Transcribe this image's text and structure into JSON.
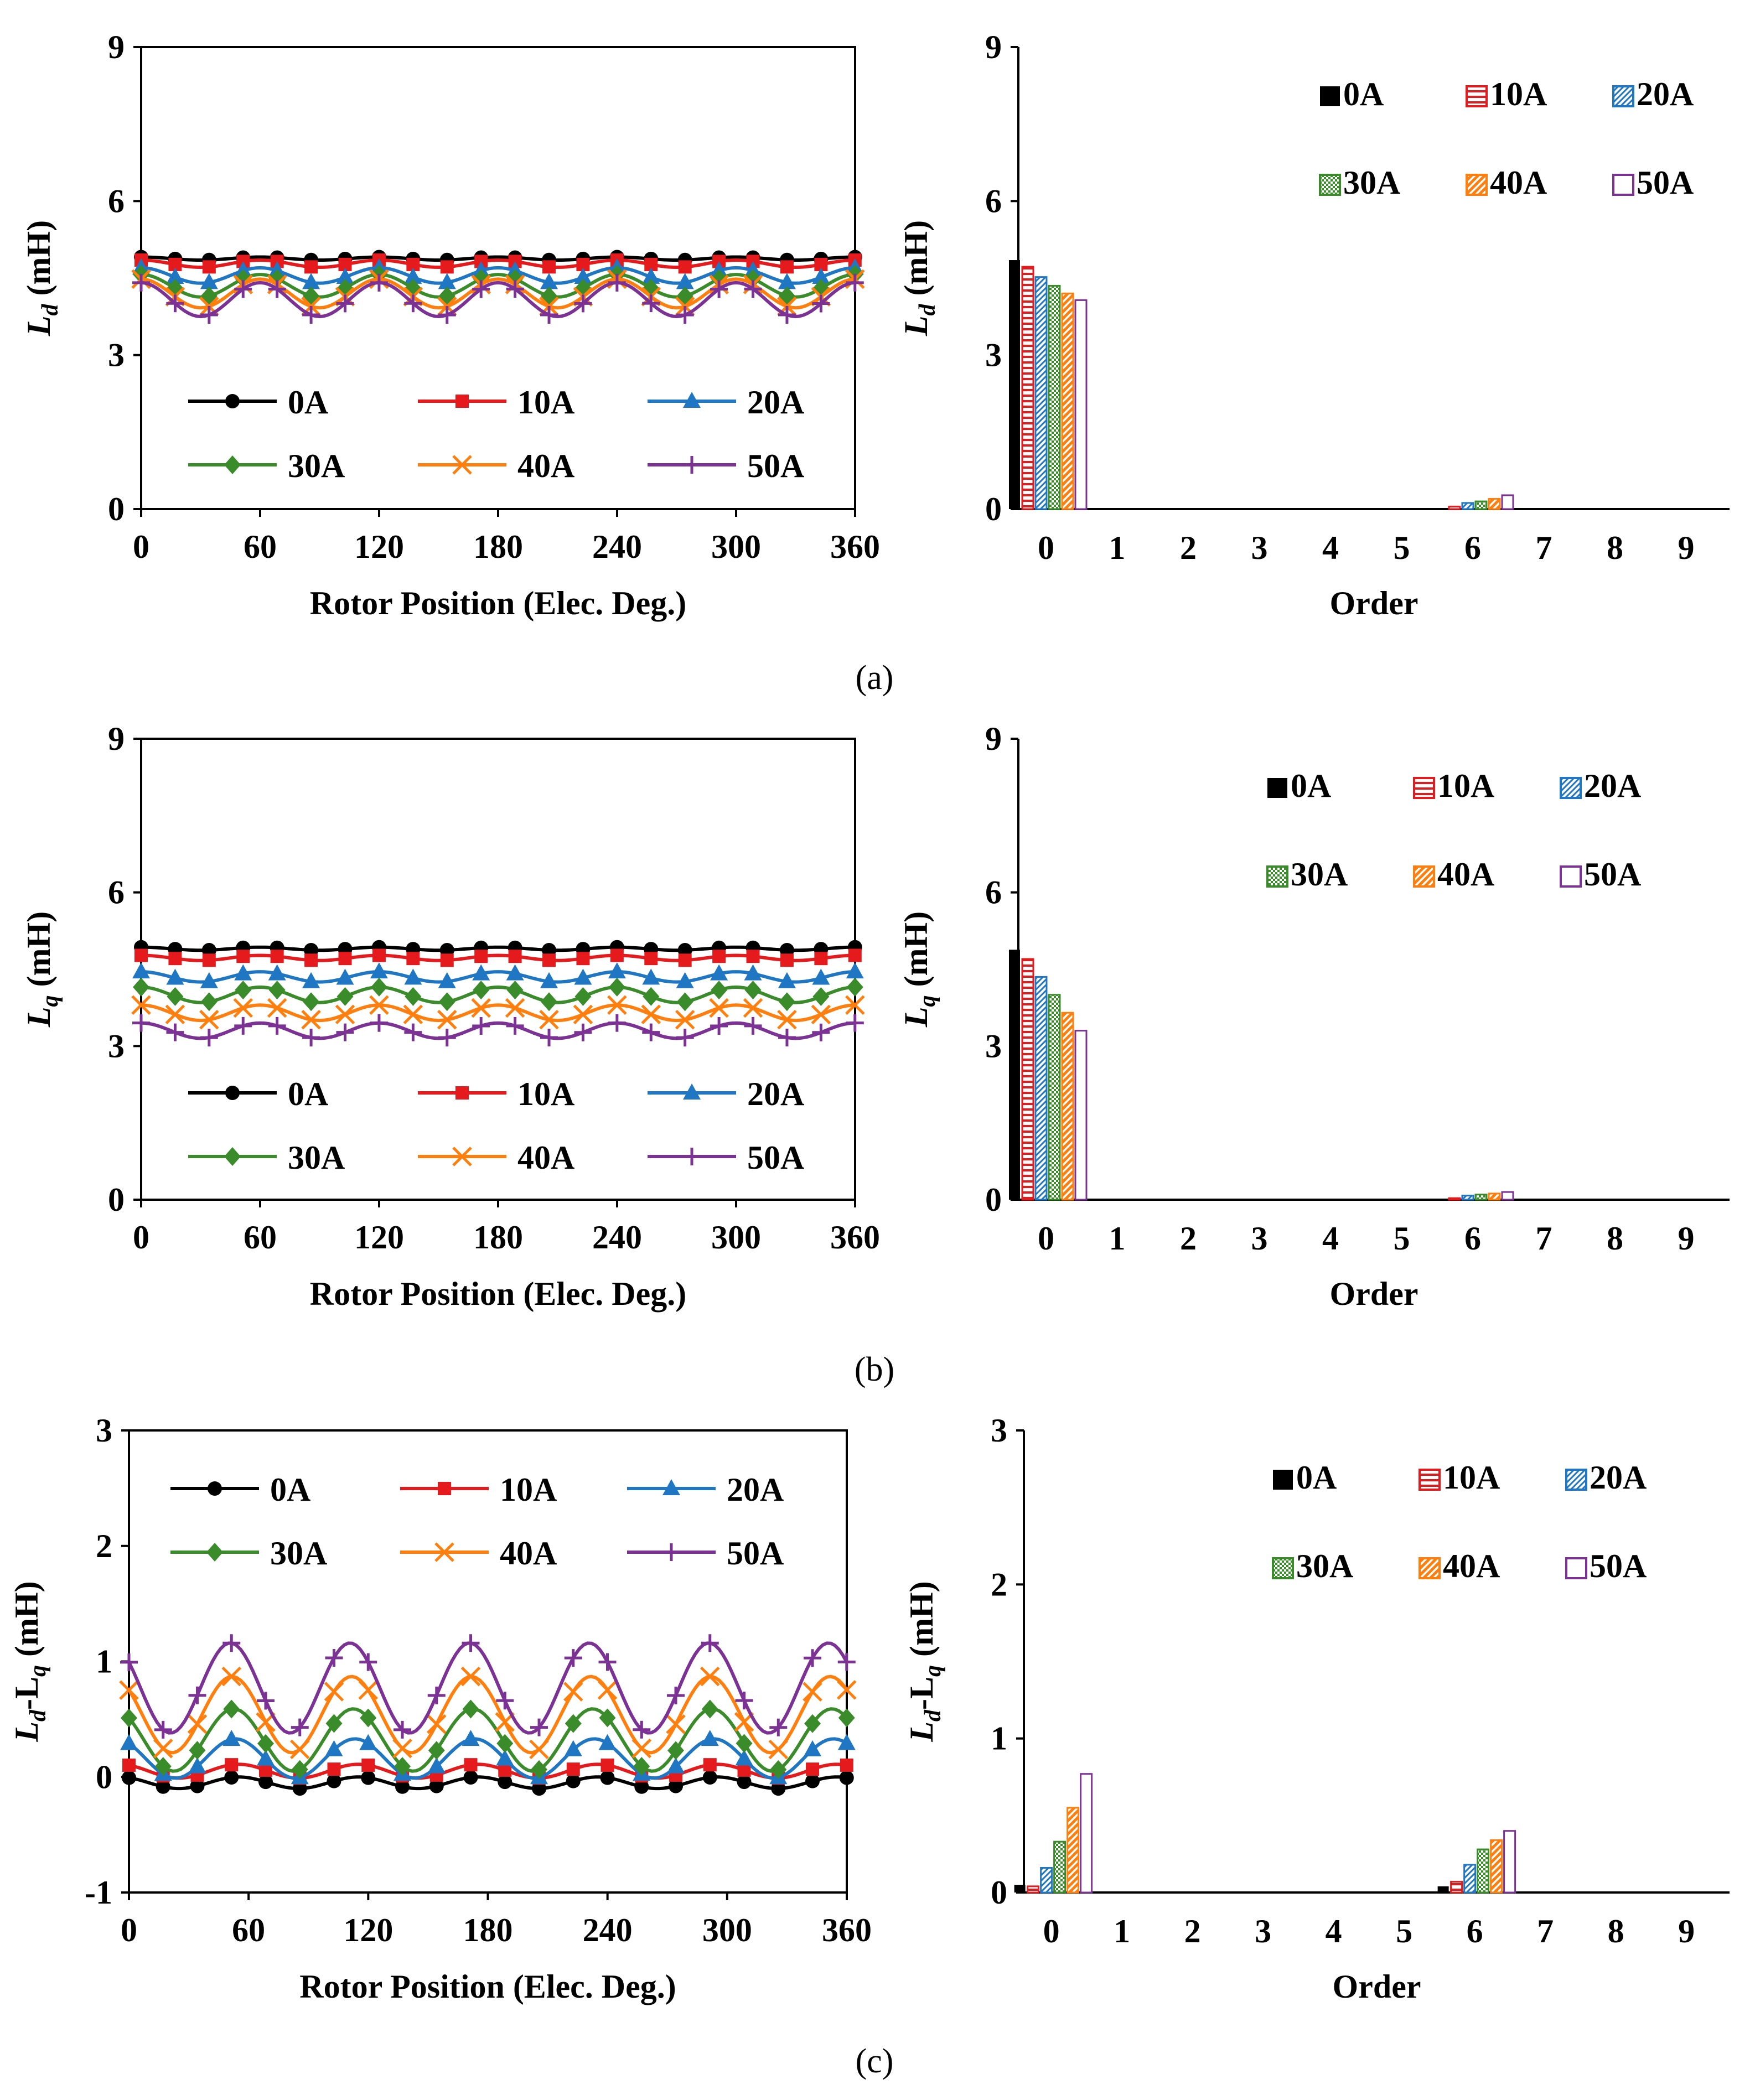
{
  "figure": {
    "panel_labels": [
      "(a)",
      "(b)",
      "(c)"
    ]
  },
  "colors": {
    "0A": "#000000",
    "10A": "#e41a1c",
    "20A": "#1f77c4",
    "30A": "#3a8c2a",
    "40A": "#ff7f0e",
    "50A": "#7b3294"
  },
  "chart_data": [
    {
      "id": "a-left",
      "type": "line",
      "xlabel": "Rotor Position (Elec. Deg.)",
      "ylabel_main": "L",
      "ylabel_sub": "d",
      "ylabel_unit": " (mH)",
      "xlim": [
        0,
        360
      ],
      "ylim": [
        0,
        9
      ],
      "xticks": [
        0,
        60,
        120,
        180,
        240,
        300,
        360
      ],
      "yticks": [
        0,
        3,
        6,
        9
      ],
      "legend": [
        "0A",
        "10A",
        "20A",
        "30A",
        "40A",
        "50A"
      ],
      "series": [
        {
          "name": "0A",
          "marker": "circle",
          "mean": 4.88,
          "amp": 0.03,
          "phase": 0
        },
        {
          "name": "10A",
          "marker": "square",
          "mean": 4.78,
          "amp": 0.07,
          "phase": 0
        },
        {
          "name": "20A",
          "marker": "triangle",
          "mean": 4.55,
          "amp": 0.15,
          "phase": 0
        },
        {
          "name": "30A",
          "marker": "diamond",
          "mean": 4.35,
          "amp": 0.22,
          "phase": 0
        },
        {
          "name": "40A",
          "marker": "x",
          "mean": 4.2,
          "amp": 0.28,
          "phase": 0
        },
        {
          "name": "50A",
          "marker": "plus",
          "mean": 4.08,
          "amp": 0.33,
          "phase": 0
        }
      ]
    },
    {
      "id": "a-right",
      "type": "bar",
      "xlabel": "Order",
      "ylabel_main": "L",
      "ylabel_sub": "d",
      "ylabel_unit": " (mH)",
      "ylim": [
        0,
        9
      ],
      "yticks": [
        0,
        3,
        6,
        9
      ],
      "categories": [
        "0",
        "1",
        "2",
        "3",
        "4",
        "5",
        "6",
        "7",
        "8",
        "9"
      ],
      "legend": [
        "0A",
        "10A",
        "20A",
        "30A",
        "40A",
        "50A"
      ],
      "series": [
        {
          "name": "0A",
          "pattern": "solid",
          "values": [
            4.85,
            0,
            0,
            0,
            0,
            0,
            0.02,
            0,
            0,
            0
          ]
        },
        {
          "name": "10A",
          "pattern": "hlines",
          "values": [
            4.72,
            0,
            0,
            0,
            0,
            0,
            0.05,
            0,
            0,
            0
          ]
        },
        {
          "name": "20A",
          "pattern": "diag",
          "values": [
            4.52,
            0,
            0,
            0,
            0,
            0,
            0.12,
            0,
            0,
            0
          ]
        },
        {
          "name": "30A",
          "pattern": "dots",
          "values": [
            4.35,
            0,
            0,
            0,
            0,
            0,
            0.15,
            0,
            0,
            0
          ]
        },
        {
          "name": "40A",
          "pattern": "diag2",
          "values": [
            4.2,
            0,
            0,
            0,
            0,
            0,
            0.2,
            0,
            0,
            0
          ]
        },
        {
          "name": "50A",
          "pattern": "hollow",
          "values": [
            4.07,
            0,
            0,
            0,
            0,
            0,
            0.27,
            0,
            0,
            0
          ]
        }
      ]
    },
    {
      "id": "b-left",
      "type": "line",
      "xlabel": "Rotor Position (Elec. Deg.)",
      "ylabel_main": "L",
      "ylabel_sub": "q",
      "ylabel_unit": " (mH)",
      "xlim": [
        0,
        360
      ],
      "ylim": [
        0,
        9
      ],
      "xticks": [
        0,
        60,
        120,
        180,
        240,
        300,
        360
      ],
      "yticks": [
        0,
        3,
        6,
        9
      ],
      "legend": [
        "0A",
        "10A",
        "20A",
        "30A",
        "40A",
        "50A"
      ],
      "series": [
        {
          "name": "0A",
          "marker": "circle",
          "mean": 4.9,
          "amp": 0.03,
          "phase": 0
        },
        {
          "name": "10A",
          "marker": "square",
          "mean": 4.72,
          "amp": 0.05,
          "phase": 0
        },
        {
          "name": "20A",
          "marker": "triangle",
          "mean": 4.35,
          "amp": 0.1,
          "phase": 0
        },
        {
          "name": "30A",
          "marker": "diamond",
          "mean": 4.0,
          "amp": 0.15,
          "phase": 0
        },
        {
          "name": "40A",
          "marker": "x",
          "mean": 3.65,
          "amp": 0.15,
          "phase": 0
        },
        {
          "name": "50A",
          "marker": "plus",
          "mean": 3.3,
          "amp": 0.15,
          "phase": 0
        }
      ]
    },
    {
      "id": "b-right",
      "type": "bar",
      "xlabel": "Order",
      "ylabel_main": "L",
      "ylabel_sub": "q",
      "ylabel_unit": " (mH)",
      "ylim": [
        0,
        9
      ],
      "yticks": [
        0,
        3,
        6,
        9
      ],
      "categories": [
        "0",
        "1",
        "2",
        "3",
        "4",
        "5",
        "6",
        "7",
        "8",
        "9"
      ],
      "legend": [
        "0A",
        "10A",
        "20A",
        "30A",
        "40A",
        "50A"
      ],
      "series": [
        {
          "name": "0A",
          "pattern": "solid",
          "values": [
            4.88,
            0,
            0,
            0,
            0,
            0,
            0.01,
            0,
            0,
            0
          ]
        },
        {
          "name": "10A",
          "pattern": "hlines",
          "values": [
            4.7,
            0,
            0,
            0,
            0,
            0,
            0.03,
            0,
            0,
            0
          ]
        },
        {
          "name": "20A",
          "pattern": "diag",
          "values": [
            4.35,
            0,
            0,
            0,
            0,
            0,
            0.08,
            0,
            0,
            0
          ]
        },
        {
          "name": "30A",
          "pattern": "dots",
          "values": [
            4.0,
            0,
            0,
            0,
            0,
            0,
            0.1,
            0,
            0,
            0
          ]
        },
        {
          "name": "40A",
          "pattern": "diag2",
          "values": [
            3.65,
            0,
            0,
            0,
            0,
            0,
            0.12,
            0,
            0,
            0
          ]
        },
        {
          "name": "50A",
          "pattern": "hollow",
          "values": [
            3.3,
            0,
            0,
            0,
            0,
            0,
            0.15,
            0,
            0,
            0
          ]
        }
      ]
    },
    {
      "id": "c-left",
      "type": "line",
      "xlabel": "Rotor Position (Elec. Deg.)",
      "ylabel_main": "L",
      "ylabel_sub": "d",
      "ylabel_mid": "-L",
      "ylabel_sub2": "q",
      "ylabel_unit": " (mH)",
      "xlim": [
        0,
        360
      ],
      "ylim": [
        -1,
        3
      ],
      "xticks": [
        0,
        60,
        120,
        180,
        240,
        300,
        360
      ],
      "yticks": [
        -1,
        0,
        1,
        2,
        3
      ],
      "legend": [
        "0A",
        "10A",
        "20A",
        "30A",
        "40A",
        "50A"
      ],
      "series": [
        {
          "name": "0A",
          "marker": "circle",
          "mean": -0.05,
          "amp": 0.05,
          "phase": 30
        },
        {
          "name": "10A",
          "marker": "square",
          "mean": 0.05,
          "amp": 0.06,
          "phase": 30
        },
        {
          "name": "20A",
          "marker": "triangle",
          "mean": 0.16,
          "amp": 0.17,
          "phase": 40
        },
        {
          "name": "30A",
          "marker": "diamond",
          "mean": 0.32,
          "amp": 0.27,
          "phase": 45
        },
        {
          "name": "40A",
          "marker": "x",
          "mean": 0.54,
          "amp": 0.33,
          "phase": 50
        },
        {
          "name": "50A",
          "marker": "plus",
          "mean": 0.77,
          "amp": 0.39,
          "phase": 55
        }
      ]
    },
    {
      "id": "c-right",
      "type": "bar",
      "xlabel": "Order",
      "ylabel_main": "L",
      "ylabel_sub": "d",
      "ylabel_mid": "-L",
      "ylabel_sub2": "q",
      "ylabel_unit": " (mH)",
      "ylim": [
        0,
        3
      ],
      "yticks": [
        0,
        1,
        2,
        3
      ],
      "categories": [
        "0",
        "1",
        "2",
        "3",
        "4",
        "5",
        "6",
        "7",
        "8",
        "9"
      ],
      "legend": [
        "0A",
        "10A",
        "20A",
        "30A",
        "40A",
        "50A"
      ],
      "series": [
        {
          "name": "0A",
          "pattern": "solid",
          "values": [
            0.05,
            0,
            0,
            0,
            0,
            0,
            0.04,
            0,
            0,
            0
          ]
        },
        {
          "name": "10A",
          "pattern": "hlines",
          "values": [
            0.04,
            0,
            0,
            0,
            0,
            0,
            0.07,
            0,
            0,
            0
          ]
        },
        {
          "name": "20A",
          "pattern": "diag",
          "values": [
            0.16,
            0,
            0,
            0,
            0,
            0,
            0.18,
            0,
            0,
            0
          ]
        },
        {
          "name": "30A",
          "pattern": "dots",
          "values": [
            0.33,
            0,
            0,
            0,
            0,
            0,
            0.28,
            0,
            0,
            0
          ]
        },
        {
          "name": "40A",
          "pattern": "diag2",
          "values": [
            0.55,
            0,
            0,
            0,
            0,
            0,
            0.34,
            0,
            0,
            0
          ]
        },
        {
          "name": "50A",
          "pattern": "hollow",
          "values": [
            0.77,
            0,
            0,
            0,
            0,
            0,
            0.4,
            0,
            0,
            0
          ]
        }
      ]
    }
  ]
}
